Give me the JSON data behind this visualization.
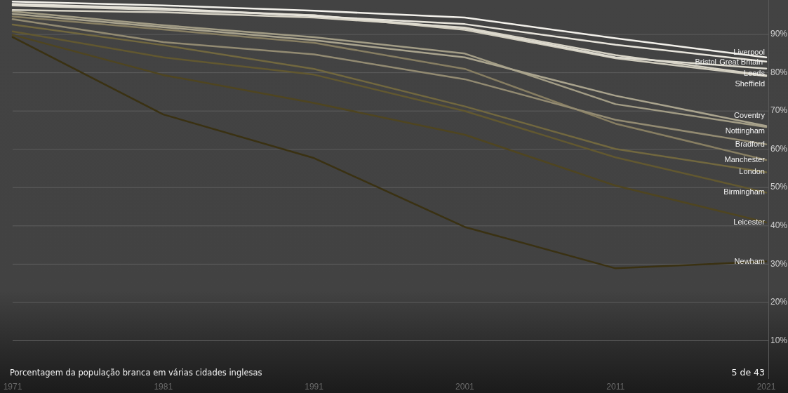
{
  "chart_data": {
    "type": "line",
    "title": "Porcentagem da população branca em várias cidades inglesas",
    "annotations": [
      "5 de 43"
    ],
    "x": [
      1971,
      1981,
      1991,
      2001,
      2011,
      2021
    ],
    "xlim": [
      1971,
      2021
    ],
    "xticks": [
      1971,
      1981,
      1991,
      2001,
      2011,
      2021
    ],
    "ylim": [
      0,
      99
    ],
    "yticks": [
      {
        "value": 10,
        "label": "10%"
      },
      {
        "value": 20,
        "label": "20%"
      },
      {
        "value": 30,
        "label": "30%"
      },
      {
        "value": 40,
        "label": "40%"
      },
      {
        "value": 50,
        "label": "50%"
      },
      {
        "value": 60,
        "label": "60%"
      },
      {
        "value": 70,
        "label": "70%"
      },
      {
        "value": 80,
        "label": "80%"
      },
      {
        "value": 90,
        "label": "90%"
      }
    ],
    "grid": "y",
    "series": [
      {
        "name": "Liverpool",
        "color": "#f3f1eb",
        "values": [
          98.6,
          97.6,
          96.2,
          94.4,
          89.0,
          84.0
        ]
      },
      {
        "name": "Great Britain",
        "color": "#e8e5dc",
        "values": [
          98.0,
          96.8,
          94.8,
          92.7,
          87.3,
          82.9
        ]
      },
      {
        "name": "Bristol",
        "color": "#dedbd0",
        "values": [
          97.6,
          96.4,
          95.0,
          91.6,
          84.0,
          81.1
        ]
      },
      {
        "name": "Leeds",
        "color": "#d7d3c6",
        "values": [
          96.4,
          95.8,
          94.4,
          91.8,
          84.6,
          79.3
        ]
      },
      {
        "name": "Sheffield",
        "color": "#d0ccbe",
        "values": [
          97.8,
          96.6,
          95.0,
          91.2,
          83.8,
          79.1
        ]
      },
      {
        "name": "Coventry",
        "color": "#aaa48e",
        "values": [
          95.4,
          91.9,
          88.5,
          84.0,
          74.0,
          66.1
        ]
      },
      {
        "name": "Nottingham",
        "color": "#a39d86",
        "values": [
          96.0,
          92.4,
          89.3,
          85.0,
          71.8,
          65.8
        ]
      },
      {
        "name": "Bradford",
        "color": "#938b72",
        "values": [
          94.0,
          88.0,
          84.8,
          78.3,
          67.7,
          61.3
        ]
      },
      {
        "name": "Manchester",
        "color": "#877e62",
        "values": [
          94.7,
          91.3,
          87.8,
          81.0,
          66.7,
          57.2
        ]
      },
      {
        "name": "London",
        "color": "#72683f",
        "values": [
          92.6,
          87.2,
          81.0,
          71.2,
          60.1,
          54.0
        ]
      },
      {
        "name": "Birmingham",
        "color": "#625830",
        "values": [
          90.8,
          84.0,
          79.5,
          70.0,
          57.9,
          48.7
        ]
      },
      {
        "name": "Leicester",
        "color": "#4f4520",
        "values": [
          89.9,
          79.4,
          72.1,
          63.8,
          50.5,
          40.9
        ]
      },
      {
        "name": "Newham",
        "color": "#3a3112",
        "values": [
          89.3,
          69.1,
          57.7,
          39.7,
          28.9,
          30.7
        ]
      }
    ]
  }
}
